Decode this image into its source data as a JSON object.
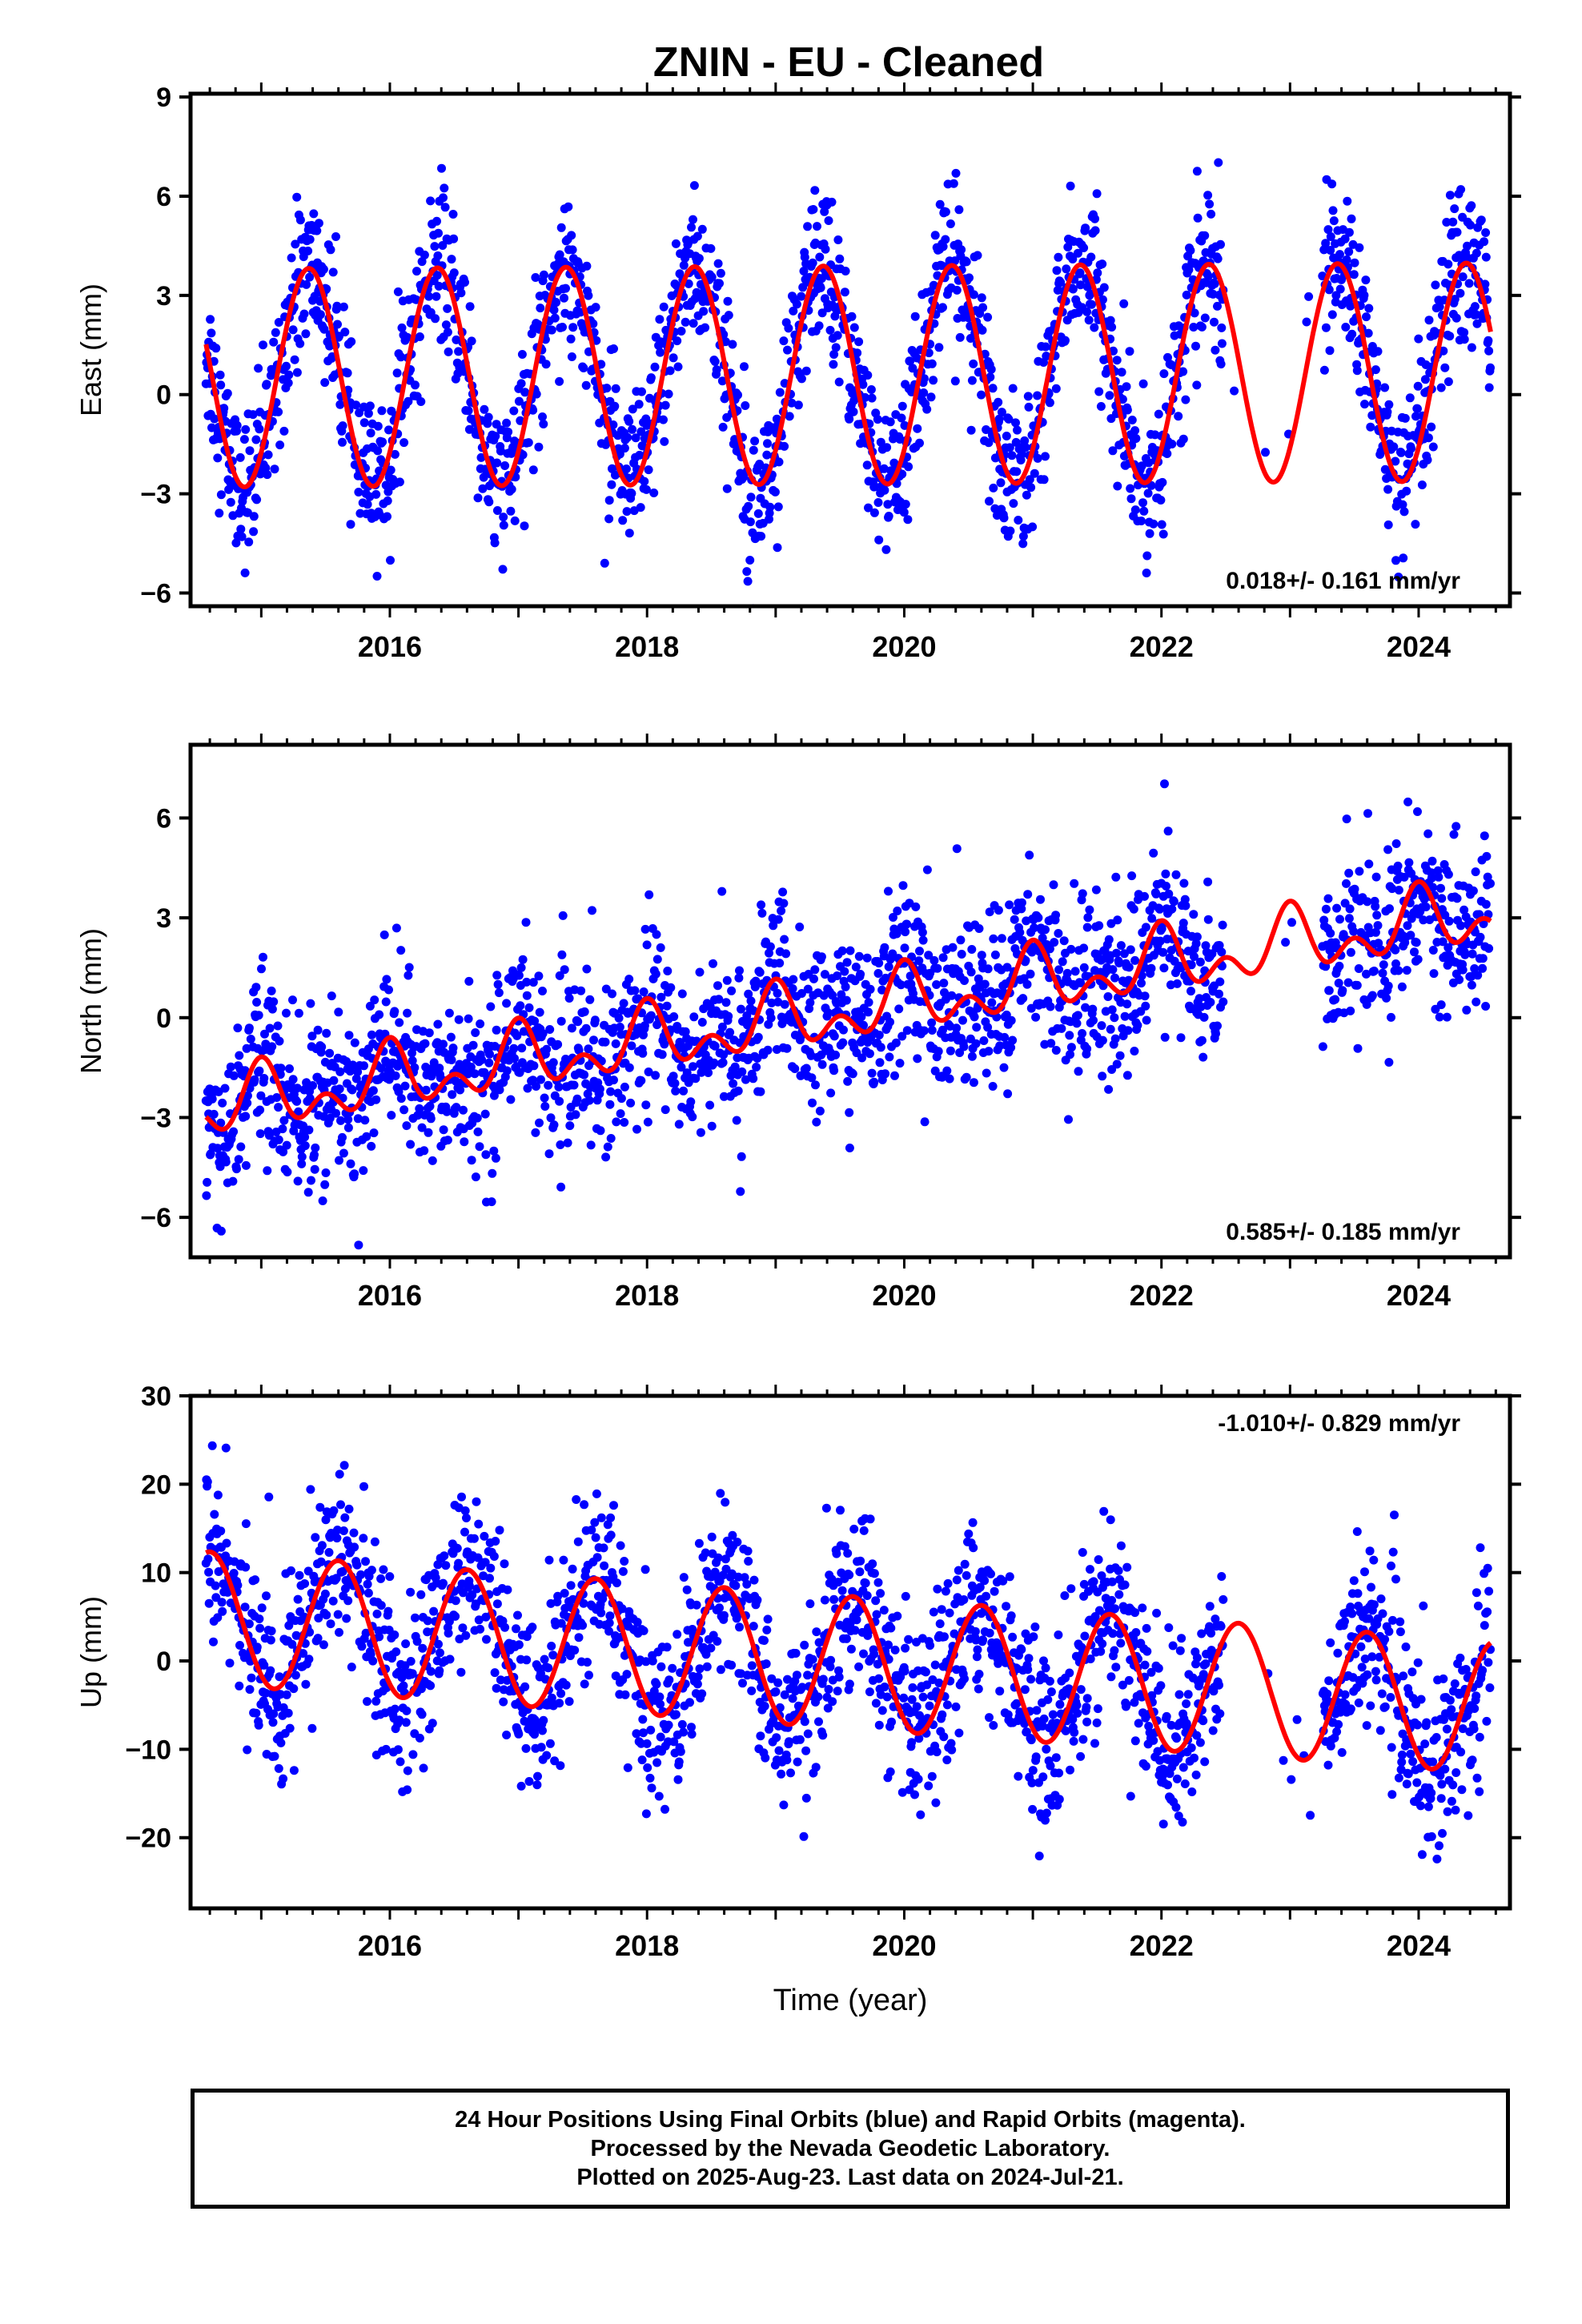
{
  "title": "ZNIN  - EU - Cleaned",
  "footer": {
    "line1": "24 Hour Positions Using Final Orbits (blue) and Rapid Orbits (magenta).",
    "line2": "Processed by the Nevada Geodetic Laboratory.",
    "line3": "Plotted on 2025-Aug-23. Last data on 2024-Jul-21."
  },
  "colors": {
    "points": "#0000ff",
    "fit": "#ff0000",
    "axes": "#000000"
  },
  "chart_data": [
    {
      "type": "scatter",
      "panel": "east",
      "ylabel": "East (mm)",
      "xlabel": "",
      "xlim": [
        2014.45,
        2024.71
      ],
      "ylim": [
        -6.4,
        9.1
      ],
      "yticks": [
        9,
        6,
        3,
        0,
        -3,
        -6
      ],
      "ytick_labels": [
        "9",
        "6",
        "3",
        "0",
        "−3",
        "−6"
      ],
      "xticks": [
        2016,
        2018,
        2020,
        2022,
        2024
      ],
      "xtick_labels": [
        "2016",
        "2018",
        "2020",
        "2022",
        "2024"
      ],
      "rate_label": "0.018+/- 0.161 mm/yr",
      "rate_label_pos": "bottom-right",
      "fit": {
        "offset": 0.5,
        "rate": 0.018,
        "amp": 3.3,
        "amp2": 0.0,
        "phase_peak": 0.37
      },
      "scatter_sigma": 1.15,
      "gaps": [
        [
          2022.48,
          2023.25
        ]
      ],
      "series": [
        {
          "name": "Final Orbits",
          "color": "#0000ff",
          "kind": "points"
        },
        {
          "name": "Fit",
          "color": "#ff0000",
          "kind": "line"
        }
      ]
    },
    {
      "type": "scatter",
      "panel": "north",
      "ylabel": "North (mm)",
      "xlabel": "",
      "xlim": [
        2014.45,
        2024.71
      ],
      "ylim": [
        -7.2,
        8.2
      ],
      "yticks": [
        6,
        3,
        0,
        -3,
        -6
      ],
      "ytick_labels": [
        "6",
        "3",
        "0",
        "−3",
        "−6"
      ],
      "xticks": [
        2016,
        2018,
        2020,
        2022,
        2024
      ],
      "xtick_labels": [
        "2016",
        "2018",
        "2020",
        "2022",
        "2024"
      ],
      "rate_label": "0.585+/- 0.185 mm/yr",
      "rate_label_pos": "bottom-right",
      "fit": {
        "offset": -2.8,
        "rate": 0.585,
        "amp": 0.7,
        "amp2": 0.6,
        "phase_peak": 0.0
      },
      "scatter_sigma": 1.25,
      "gaps": [
        [
          2022.48,
          2023.25
        ]
      ],
      "series": [
        {
          "name": "Final Orbits",
          "color": "#0000ff",
          "kind": "points"
        },
        {
          "name": "Fit",
          "color": "#ff0000",
          "kind": "line"
        }
      ]
    },
    {
      "type": "scatter",
      "panel": "up",
      "ylabel": "Up (mm)",
      "xlabel": "Time (year)",
      "xlim": [
        2014.45,
        2024.71
      ],
      "ylim": [
        -28,
        30
      ],
      "yticks": [
        30,
        20,
        10,
        0,
        -10,
        -20
      ],
      "ytick_labels": [
        "30",
        "20",
        "10",
        "0",
        "−10",
        "−20"
      ],
      "xticks": [
        2016,
        2018,
        2020,
        2022,
        2024
      ],
      "xtick_labels": [
        "2016",
        "2018",
        "2020",
        "2022",
        "2024"
      ],
      "rate_label": "-1.010+/- 0.829 mm/yr",
      "rate_label_pos": "top-right",
      "fit": {
        "offset": 5.0,
        "rate": -1.01,
        "amp": 7.5,
        "amp2": 0.0,
        "phase_peak": 0.6
      },
      "scatter_sigma": 5.0,
      "gaps": [
        [
          2022.48,
          2023.25
        ]
      ],
      "series": [
        {
          "name": "Final Orbits",
          "color": "#0000ff",
          "kind": "points"
        },
        {
          "name": "Fit",
          "color": "#ff0000",
          "kind": "line"
        }
      ]
    }
  ]
}
